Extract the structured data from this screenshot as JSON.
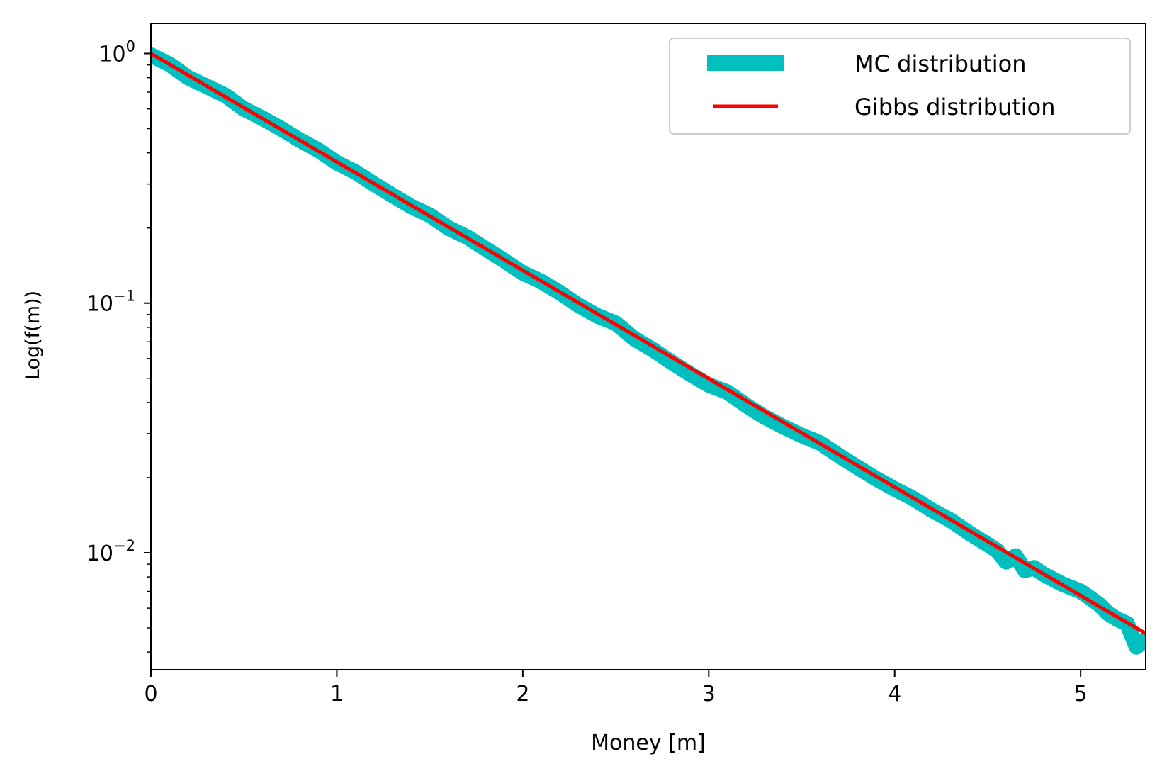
{
  "chart_data": {
    "type": "line",
    "xlabel": "Money [m]",
    "ylabel": "Log(f(m))",
    "xlim": [
      0,
      5.35
    ],
    "ylim": [
      0.0034,
      1.32
    ],
    "yscale": "log",
    "grid": false,
    "legend_position": "top-right",
    "x_ticks": [
      {
        "value": 0,
        "label": "0"
      },
      {
        "value": 1,
        "label": "1"
      },
      {
        "value": 2,
        "label": "2"
      },
      {
        "value": 3,
        "label": "3"
      },
      {
        "value": 4,
        "label": "4"
      },
      {
        "value": 5,
        "label": "5"
      }
    ],
    "y_ticks": [
      {
        "value": 1,
        "base": "10",
        "exp": "0"
      },
      {
        "value": 0.1,
        "base": "10",
        "exp": "−1"
      },
      {
        "value": 0.01,
        "base": "10",
        "exp": "−2"
      }
    ],
    "series": [
      {
        "name": "MC distribution",
        "color": "#00bfbf",
        "x": [
          0.0,
          0.1,
          0.2,
          0.3,
          0.4,
          0.5,
          0.6,
          0.7,
          0.8,
          0.9,
          1.0,
          1.1,
          1.2,
          1.3,
          1.4,
          1.5,
          1.6,
          1.7,
          1.8,
          1.9,
          2.0,
          2.1,
          2.2,
          2.3,
          2.4,
          2.5,
          2.6,
          2.7,
          2.8,
          2.9,
          3.0,
          3.1,
          3.2,
          3.3,
          3.4,
          3.5,
          3.6,
          3.7,
          3.8,
          3.9,
          4.0,
          4.1,
          4.2,
          4.3,
          4.4,
          4.5,
          4.55,
          4.6,
          4.65,
          4.7,
          4.75,
          4.8,
          4.9,
          5.0,
          5.05,
          5.1,
          5.15,
          5.2,
          5.25,
          5.3,
          5.35
        ],
        "y": [
          0.985,
          0.905,
          0.8,
          0.738,
          0.68,
          0.6,
          0.55,
          0.5,
          0.45,
          0.41,
          0.365,
          0.335,
          0.3,
          0.27,
          0.244,
          0.225,
          0.2,
          0.184,
          0.165,
          0.148,
          0.132,
          0.122,
          0.11,
          0.098,
          0.089,
          0.083,
          0.072,
          0.065,
          0.058,
          0.052,
          0.047,
          0.044,
          0.039,
          0.035,
          0.032,
          0.0295,
          0.0275,
          0.0245,
          0.022,
          0.0198,
          0.018,
          0.0165,
          0.0148,
          0.0135,
          0.012,
          0.0108,
          0.0102,
          0.0092,
          0.0097,
          0.0085,
          0.0087,
          0.0082,
          0.0075,
          0.007,
          0.0066,
          0.0062,
          0.0057,
          0.0054,
          0.0052,
          0.0042,
          0.0045
        ]
      },
      {
        "name": "Gibbs distribution",
        "color": "#ff0000",
        "function": "exp(-m)"
      }
    ]
  }
}
